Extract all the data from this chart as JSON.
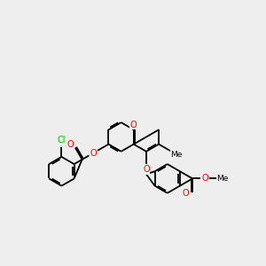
{
  "bg": "#eeeeee",
  "bc": "#000000",
  "oc": "#ff0000",
  "clc": "#00bb00",
  "lw": 1.3,
  "dbg": 0.05,
  "fs": 7.0,
  "fs_me": 6.5,
  "R": 0.55,
  "figsize": [
    3.0,
    3.0
  ],
  "dpi": 100,
  "xlim": [
    0,
    10
  ],
  "ylim": [
    2,
    8
  ]
}
